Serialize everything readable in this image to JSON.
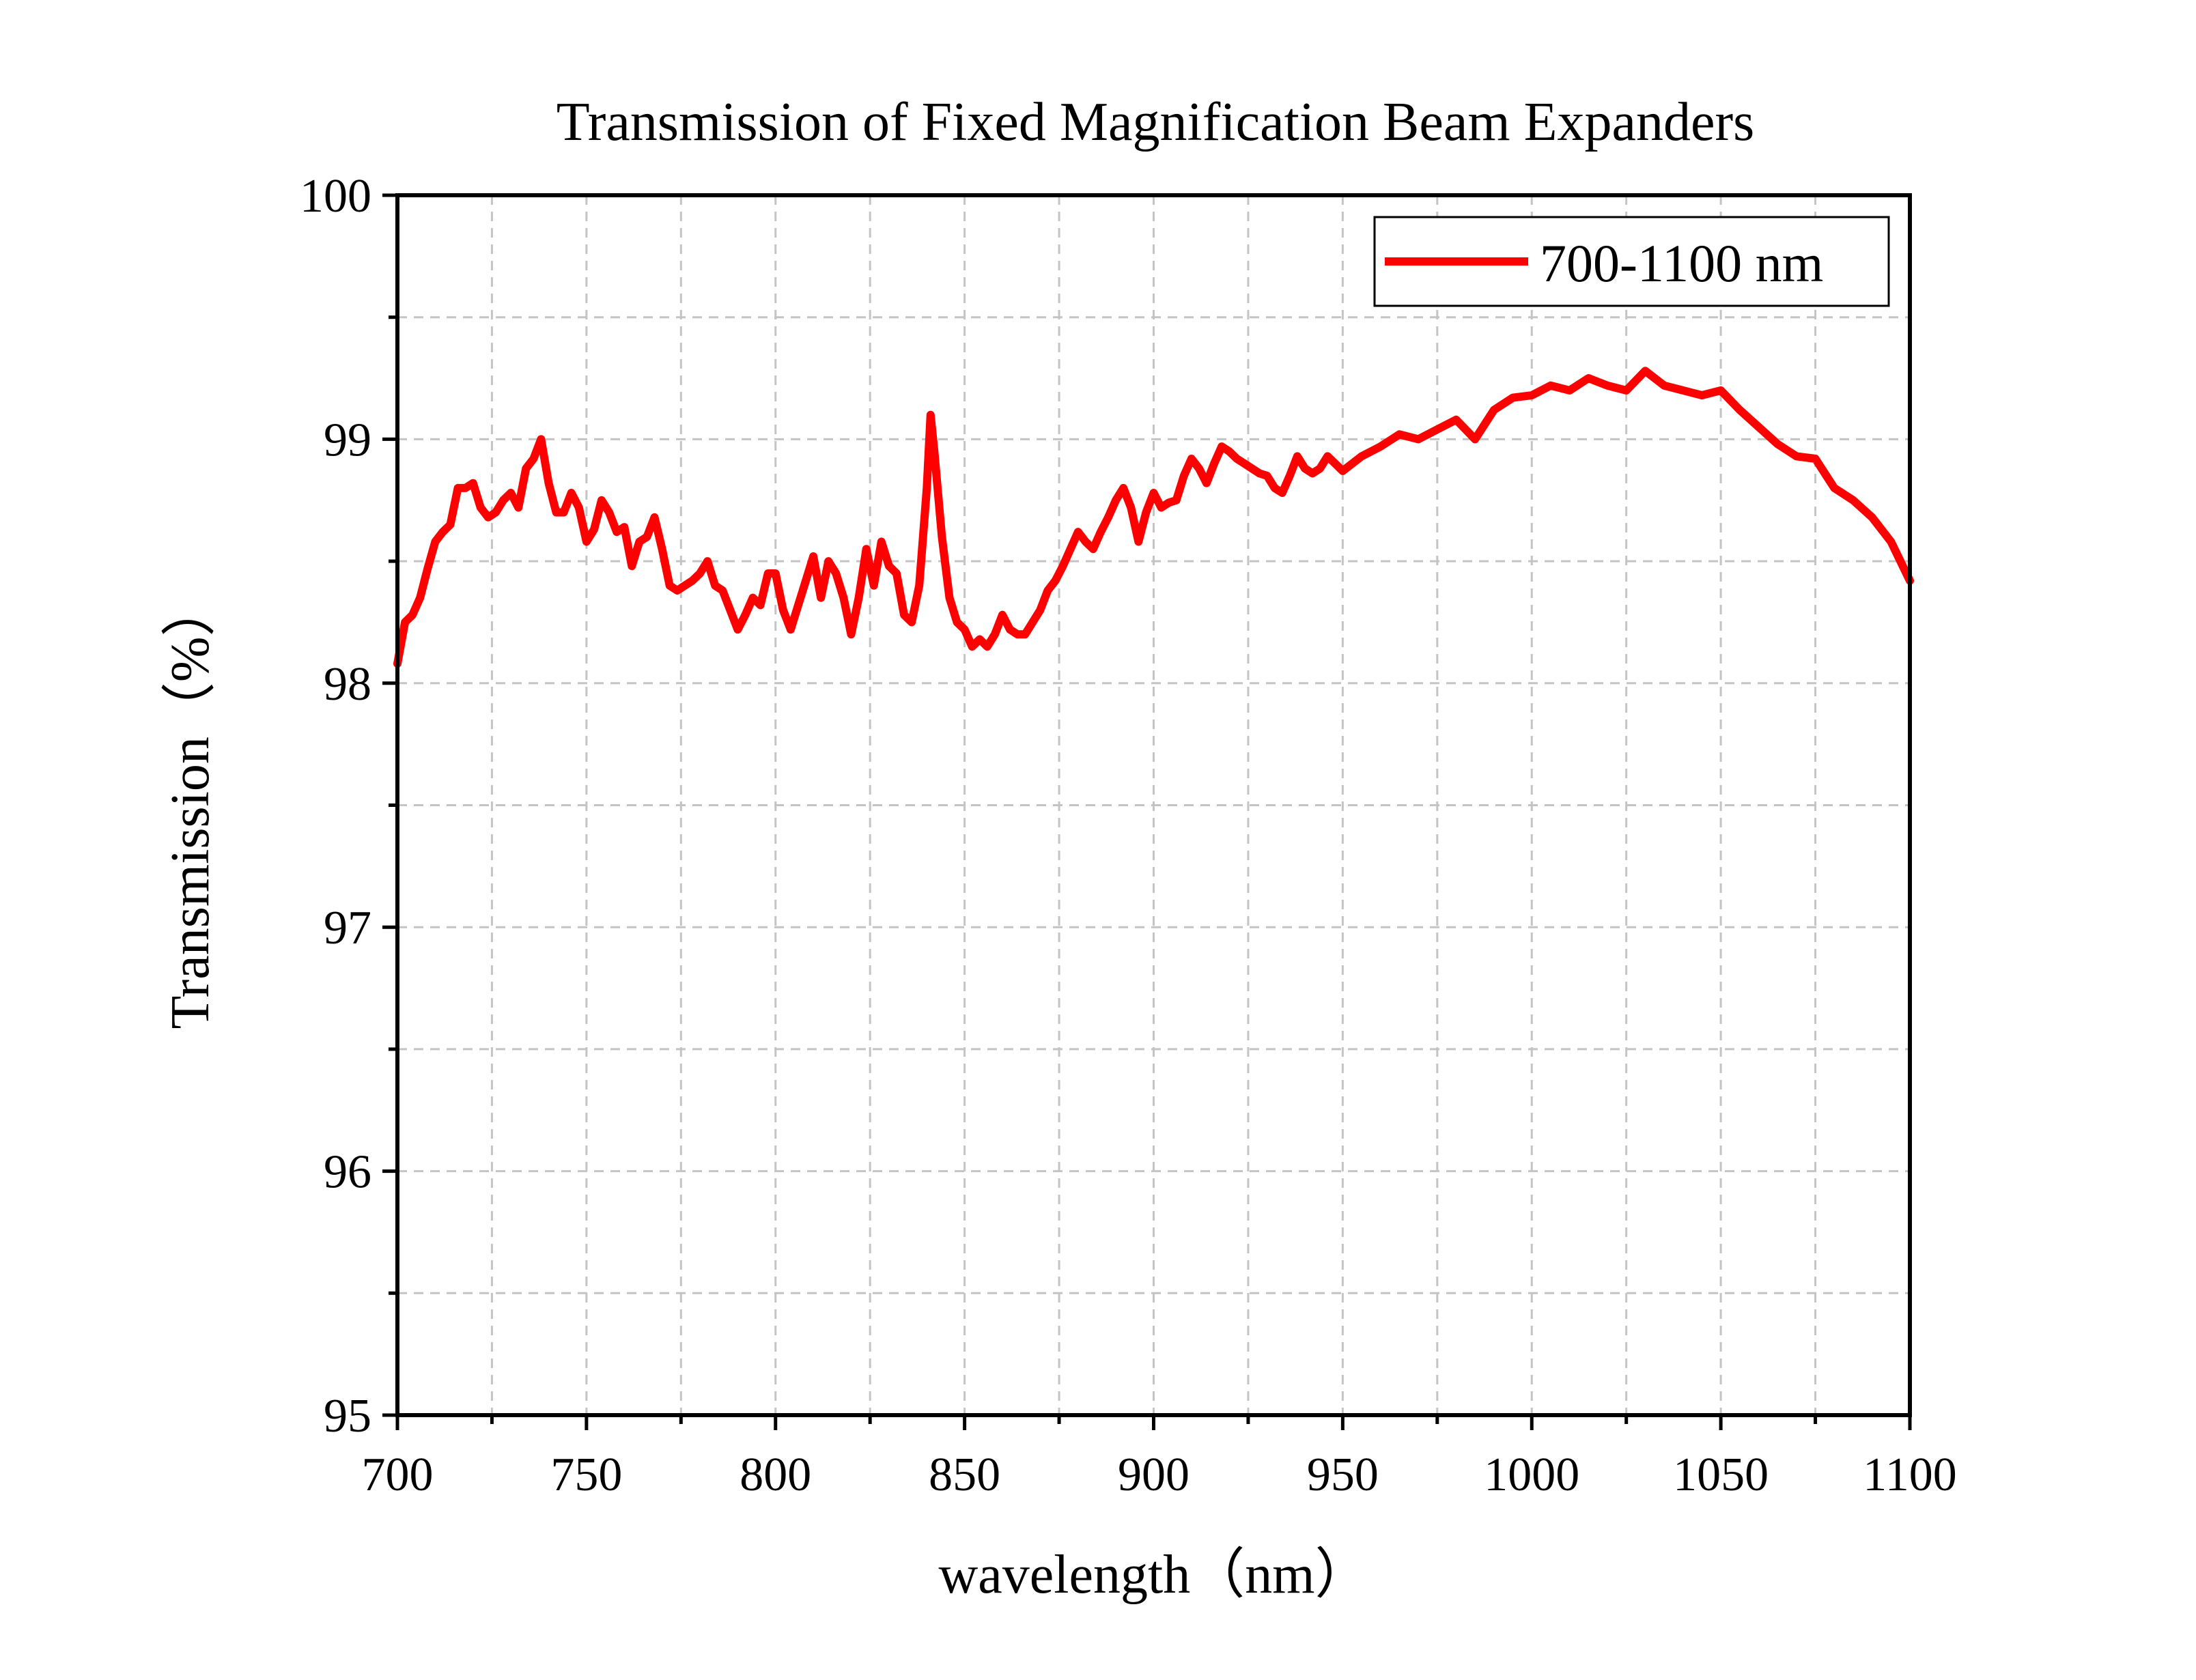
{
  "chart_data": {
    "type": "line",
    "title": "Transmission of Fixed Magnification Beam Expanders",
    "xlabel": "wavelength（nm）",
    "ylabel": "Transmission（%）",
    "xlim": [
      700,
      1100
    ],
    "ylim": [
      95,
      100
    ],
    "xticks": [
      700,
      750,
      800,
      850,
      900,
      950,
      1000,
      1050,
      1100
    ],
    "yticks": [
      95,
      96,
      97,
      98,
      99,
      100
    ],
    "x_minor_step": 25,
    "y_minor_step": 0.5,
    "grid": true,
    "legend_position": "top-right",
    "series": [
      {
        "name": "700-1100 nm",
        "color": "#ff0000",
        "x": [
          700,
          702,
          704,
          706,
          708,
          710,
          712,
          714,
          716,
          718,
          720,
          722,
          724,
          726,
          728,
          730,
          732,
          734,
          736,
          738,
          740,
          742,
          744,
          746,
          748,
          750,
          752,
          754,
          756,
          758,
          760,
          762,
          764,
          766,
          768,
          770,
          772,
          774,
          776,
          778,
          780,
          782,
          784,
          786,
          788,
          790,
          792,
          794,
          796,
          798,
          800,
          802,
          804,
          806,
          808,
          810,
          812,
          814,
          816,
          818,
          820,
          822,
          824,
          826,
          828,
          830,
          832,
          834,
          836,
          838,
          840,
          841,
          842,
          844,
          846,
          848,
          850,
          852,
          854,
          856,
          858,
          860,
          862,
          864,
          866,
          868,
          870,
          872,
          874,
          876,
          878,
          880,
          882,
          884,
          886,
          888,
          890,
          892,
          894,
          896,
          898,
          900,
          902,
          904,
          906,
          908,
          910,
          912,
          914,
          916,
          918,
          920,
          922,
          924,
          926,
          928,
          930,
          932,
          934,
          936,
          938,
          940,
          942,
          944,
          946,
          948,
          950,
          955,
          960,
          965,
          970,
          975,
          980,
          985,
          990,
          995,
          1000,
          1005,
          1010,
          1015,
          1020,
          1025,
          1030,
          1035,
          1040,
          1045,
          1050,
          1055,
          1060,
          1065,
          1070,
          1075,
          1080,
          1085,
          1090,
          1095,
          1100
        ],
        "y": [
          98.08,
          98.25,
          98.28,
          98.35,
          98.47,
          98.58,
          98.62,
          98.65,
          98.8,
          98.8,
          98.82,
          98.72,
          98.68,
          98.7,
          98.75,
          98.78,
          98.72,
          98.88,
          98.92,
          99.0,
          98.82,
          98.7,
          98.7,
          98.78,
          98.72,
          98.58,
          98.63,
          98.75,
          98.7,
          98.62,
          98.64,
          98.48,
          98.58,
          98.6,
          98.68,
          98.55,
          98.4,
          98.38,
          98.4,
          98.42,
          98.45,
          98.5,
          98.4,
          98.38,
          98.3,
          98.22,
          98.28,
          98.35,
          98.32,
          98.45,
          98.45,
          98.3,
          98.22,
          98.32,
          98.42,
          98.52,
          98.35,
          98.5,
          98.45,
          98.35,
          98.2,
          98.35,
          98.55,
          98.4,
          98.58,
          98.48,
          98.45,
          98.28,
          98.25,
          98.4,
          98.8,
          99.1,
          98.95,
          98.6,
          98.35,
          98.25,
          98.22,
          98.15,
          98.18,
          98.15,
          98.2,
          98.28,
          98.22,
          98.2,
          98.2,
          98.25,
          98.3,
          98.38,
          98.42,
          98.48,
          98.55,
          98.62,
          98.58,
          98.55,
          98.62,
          98.68,
          98.75,
          98.8,
          98.72,
          98.58,
          98.7,
          98.78,
          98.72,
          98.74,
          98.75,
          98.85,
          98.92,
          98.88,
          98.82,
          98.9,
          98.97,
          98.95,
          98.92,
          98.9,
          98.88,
          98.86,
          98.85,
          98.8,
          98.78,
          98.85,
          98.93,
          98.88,
          98.86,
          98.88,
          98.93,
          98.9,
          98.87,
          98.93,
          98.97,
          99.02,
          99.0,
          99.04,
          99.08,
          99.0,
          99.12,
          99.17,
          99.18,
          99.22,
          99.2,
          99.25,
          99.22,
          99.2,
          99.28,
          99.22,
          99.2,
          99.18,
          99.2,
          99.12,
          99.05,
          98.98,
          98.93,
          98.92,
          98.8,
          98.75,
          98.68,
          98.58,
          98.42
        ]
      }
    ]
  }
}
